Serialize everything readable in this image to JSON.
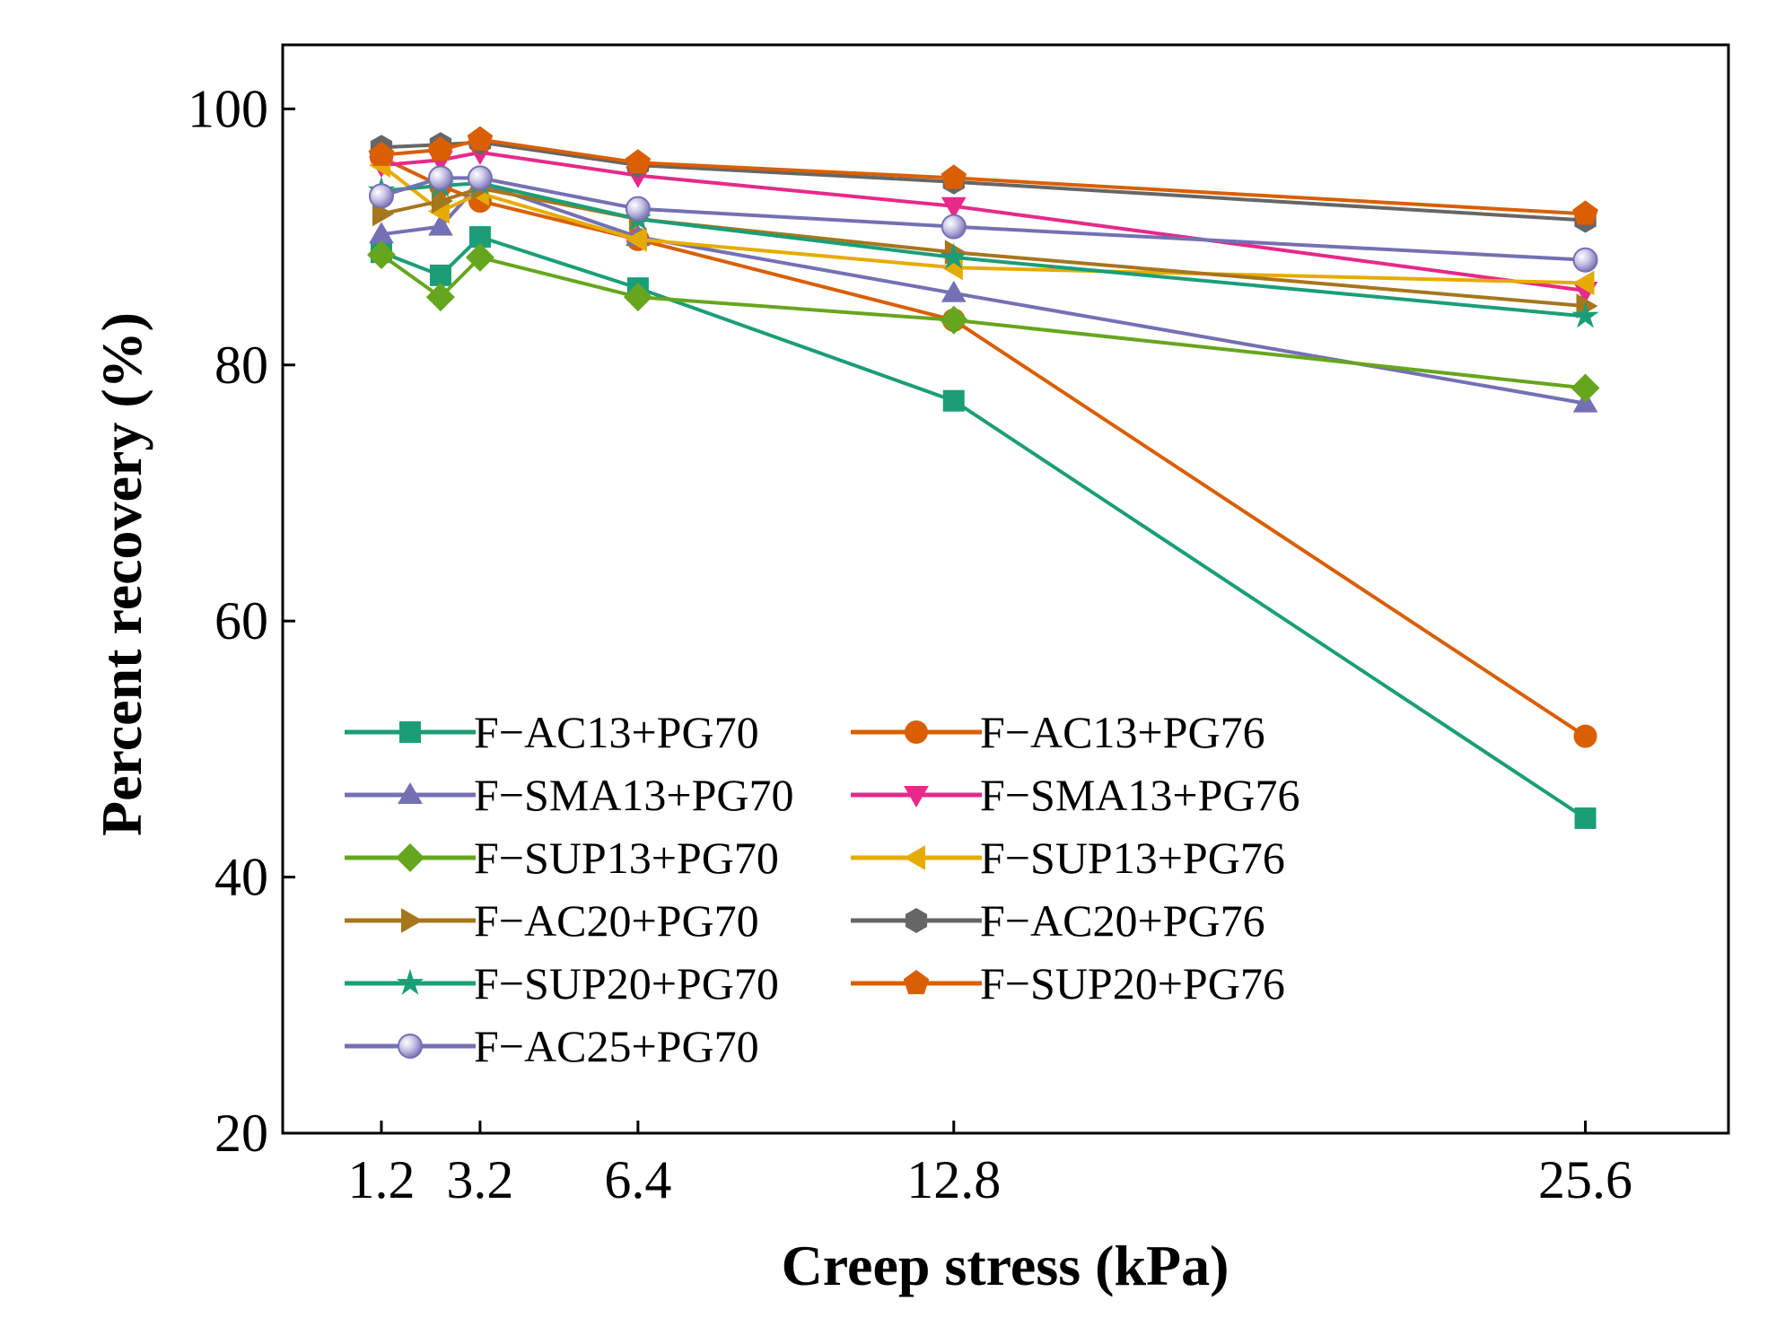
{
  "chart_data": {
    "type": "line",
    "title": "",
    "xlabel": "Creep stress (kPa)",
    "ylabel": "Percent recovery (%)",
    "xlim": [
      -0.8,
      28.5
    ],
    "ylim": [
      20,
      105
    ],
    "x": [
      1.2,
      2.4,
      3.2,
      6.4,
      12.8,
      25.6
    ],
    "xticks": [
      1.2,
      3.2,
      6.4,
      12.8,
      25.6
    ],
    "xtick_labels": [
      "1.2",
      "3.2",
      "6.4",
      "12.8",
      "25.6"
    ],
    "yticks": [
      20,
      40,
      60,
      80,
      100
    ],
    "ytick_labels": [
      "20",
      "40",
      "60",
      "80",
      "100"
    ],
    "grid": false,
    "legend_position": "lower-center",
    "series": [
      {
        "name": "F−AC13+PG70",
        "color": "#1b9e77",
        "marker": "square",
        "values": [
          88.8,
          87.0,
          90.0,
          86.0,
          77.2,
          44.6
        ]
      },
      {
        "name": "F−AC13+PG76",
        "color": "#d95f02",
        "marker": "circle",
        "values": [
          96.2,
          94.0,
          92.8,
          89.8,
          83.5,
          51.0
        ]
      },
      {
        "name": "F−SMA13+PG70",
        "color": "#7570b3",
        "marker": "triangle-up",
        "values": [
          90.2,
          90.8,
          94.2,
          90.0,
          85.6,
          77.0
        ]
      },
      {
        "name": "F−SMA13+PG76",
        "color": "#e7298a",
        "marker": "triangle-down",
        "values": [
          95.6,
          96.0,
          96.6,
          94.8,
          92.4,
          85.8
        ]
      },
      {
        "name": "F−SUP13+PG70",
        "color": "#66a61e",
        "marker": "diamond",
        "values": [
          88.6,
          85.3,
          88.4,
          85.3,
          83.5,
          78.2
        ]
      },
      {
        "name": "F−SUP13+PG76",
        "color": "#e6ab02",
        "marker": "triangle-left",
        "values": [
          95.6,
          92.0,
          93.4,
          89.8,
          87.6,
          86.4
        ]
      },
      {
        "name": "F−AC20+PG70",
        "color": "#a6761d",
        "marker": "triangle-right",
        "values": [
          91.8,
          92.8,
          93.8,
          91.4,
          88.8,
          84.6
        ]
      },
      {
        "name": "F−AC20+PG76",
        "color": "#666666",
        "marker": "hexagon",
        "values": [
          97.0,
          97.2,
          97.4,
          95.6,
          94.3,
          91.3
        ]
      },
      {
        "name": "F−SUP20+PG70",
        "color": "#1b9e77",
        "marker": "star",
        "values": [
          93.6,
          94.0,
          94.2,
          91.4,
          88.4,
          83.8
        ]
      },
      {
        "name": "F−SUP20+PG76",
        "color": "#d95f02",
        "marker": "pentagon",
        "values": [
          96.4,
          96.8,
          97.6,
          95.8,
          94.6,
          91.8
        ]
      },
      {
        "name": "F−AC25+PG70",
        "color": "#7570b3",
        "marker": "sphere",
        "values": [
          93.2,
          94.6,
          94.6,
          92.2,
          90.8,
          88.2
        ]
      }
    ]
  }
}
